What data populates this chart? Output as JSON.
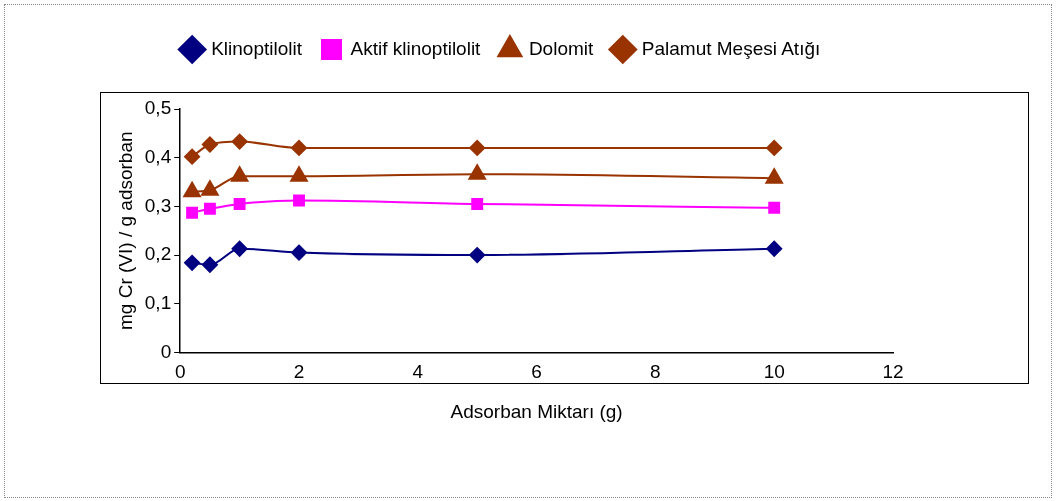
{
  "chart_data": {
    "type": "line",
    "xlabel": "Adsorban Miktarı (g)",
    "ylabel": "mg Cr (VI) / g adsorban",
    "x": [
      0.2,
      0.5,
      1,
      2,
      5,
      10
    ],
    "series": [
      {
        "name": "Klinoptilolit",
        "color": "#000080",
        "marker": "diamond",
        "values": [
          0.184,
          0.18,
          0.213,
          0.205,
          0.2,
          0.213
        ]
      },
      {
        "name": "Aktif klinoptilolit",
        "color": "#ff00ff",
        "marker": "square",
        "values": [
          0.287,
          0.295,
          0.305,
          0.312,
          0.305,
          0.297
        ]
      },
      {
        "name": "Dolomit",
        "color": "#993300",
        "marker": "triangle",
        "values": [
          0.33,
          0.333,
          0.362,
          0.362,
          0.366,
          0.358
        ]
      },
      {
        "name": "Palamut Meşesi Atığı",
        "color": "#993300",
        "marker": "diamond",
        "values": [
          0.402,
          0.427,
          0.433,
          0.42,
          0.42,
          0.42
        ]
      }
    ],
    "xlim": [
      0,
      12
    ],
    "xticks": [
      0,
      2,
      4,
      6,
      8,
      10,
      12
    ],
    "ylim": [
      0,
      0.5
    ],
    "yticks": [
      {
        "value": 0,
        "label": "0"
      },
      {
        "value": 0.1,
        "label": "0,1"
      },
      {
        "value": 0.2,
        "label": "0,2"
      },
      {
        "value": 0.3,
        "label": "0,3"
      },
      {
        "value": 0.4,
        "label": "0,4"
      },
      {
        "value": 0.5,
        "label": "0,5"
      }
    ],
    "grid": false,
    "legend": "top",
    "line_style": "solid"
  }
}
